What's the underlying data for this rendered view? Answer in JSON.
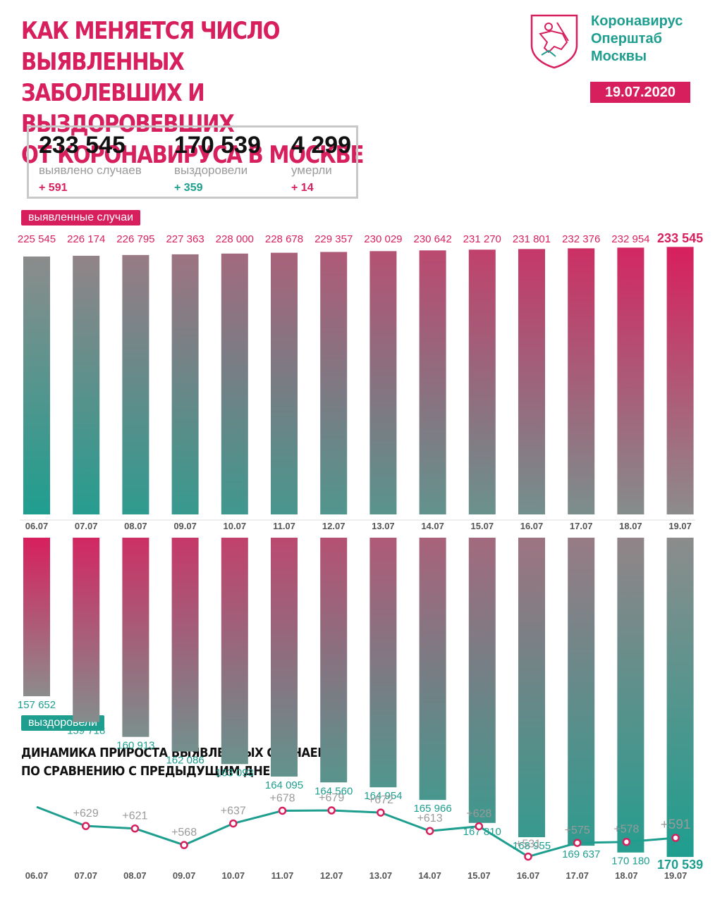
{
  "header": {
    "title_lines": [
      "КАК МЕНЯЕТСЯ ЧИСЛО ВЫЯВЛЕННЫХ",
      "ЗАБОЛЕВШИХ И ВЫЗДОРОВЕВШИХ",
      "ОТ КОРОНАВИРУСА В МОСКВЕ"
    ],
    "brand_lines": [
      "Коронавирус",
      "Оперштаб",
      "Москвы"
    ],
    "date": "19.07.2020"
  },
  "stats": [
    {
      "value": "233 545",
      "label": "выявлено случаев",
      "delta": "+ 591",
      "color": "#d81f5e"
    },
    {
      "value": "170 539",
      "label": "выздоровели",
      "delta": "+ 359",
      "color": "#1e9e8f"
    },
    {
      "value": "4 299",
      "label": "умерли",
      "delta": "+ 14",
      "color": "#d81f5e"
    }
  ],
  "labels": {
    "cases_pill": "выявленные случаи",
    "recovered_pill": "выздоровели",
    "dynamics_title_lines": [
      "ДИНАМИКА ПРИРОСТА ВЫЯВЛЕННЫХ СЛУЧАЕВ",
      "ПО СРАВНЕНИЮ С ПРЕДЫДУЩИМ ДНЕМ"
    ]
  },
  "colors": {
    "pink": "#d81f5e",
    "teal": "#1e9e8f",
    "gray": "#8a8a8a"
  },
  "chart_data": [
    {
      "type": "bar",
      "categories": [
        "06.07",
        "07.07",
        "08.07",
        "09.07",
        "10.07",
        "11.07",
        "12.07",
        "13.07",
        "14.07",
        "15.07",
        "16.07",
        "17.07",
        "18.07",
        "19.07"
      ],
      "series": [
        {
          "name": "выявленные случаи",
          "values": [
            225545,
            226174,
            226795,
            227363,
            228000,
            228678,
            229357,
            230029,
            230642,
            231270,
            231801,
            232376,
            232954,
            233545
          ]
        }
      ],
      "value_labels": [
        "225 545",
        "226 174",
        "226 795",
        "227 363",
        "228 000",
        "228 678",
        "229 357",
        "230 029",
        "230 642",
        "231 270",
        "231 801",
        "232 376",
        "232 954",
        "233 545"
      ]
    },
    {
      "type": "bar",
      "categories": [
        "06.07",
        "07.07",
        "08.07",
        "09.07",
        "10.07",
        "11.07",
        "12.07",
        "13.07",
        "14.07",
        "15.07",
        "16.07",
        "17.07",
        "18.07",
        "19.07"
      ],
      "series": [
        {
          "name": "выздоровели",
          "values": [
            157652,
            159718,
            160913,
            162086,
            163093,
            164095,
            164560,
            164954,
            165966,
            167810,
            168955,
            169637,
            170180,
            170539
          ]
        }
      ],
      "value_labels": [
        "157 652",
        "159 718",
        "160 913",
        "162 086",
        "163 093",
        "164 095",
        "164 560",
        "164 954",
        "165 966",
        "167 810",
        "168 955",
        "169 637",
        "170 180",
        "170 539"
      ]
    },
    {
      "type": "line",
      "title": "ДИНАМИКА ПРИРОСТА ВЫЯВЛЕННЫХ СЛУЧАЕВ ПО СРАВНЕНИЮ С ПРЕДЫДУЩИМ ДНЕМ",
      "categories": [
        "06.07",
        "07.07",
        "08.07",
        "09.07",
        "10.07",
        "11.07",
        "12.07",
        "13.07",
        "14.07",
        "15.07",
        "16.07",
        "17.07",
        "18.07",
        "19.07"
      ],
      "values": [
        690,
        629,
        621,
        568,
        637,
        678,
        679,
        672,
        613,
        628,
        531,
        575,
        578,
        591
      ],
      "point_labels": [
        "",
        "+629",
        "+621",
        "+568",
        "+637",
        "+678",
        "+679",
        "+672",
        "+613",
        "+628",
        "+531",
        "+575",
        "+578",
        "+591"
      ]
    }
  ]
}
